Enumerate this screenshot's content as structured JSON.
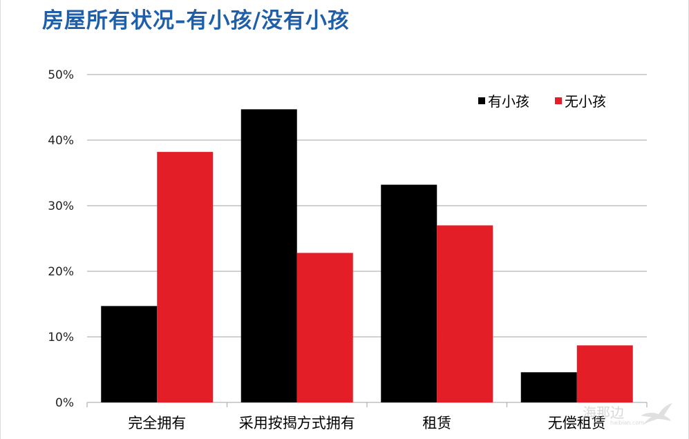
{
  "page": {
    "title": "房屋所有状况–有小孩/没有小孩",
    "watermark": {
      "text": "海那边",
      "sub": "haibian.com"
    }
  },
  "colors": {
    "title": "#1f5ea8",
    "series_with": "#000000",
    "series_without": "#e41e26",
    "grid": "#b3b3b3"
  },
  "chart_data": {
    "type": "bar",
    "title": "房屋所有状况–有小孩/没有小孩",
    "xlabel": "",
    "ylabel": "",
    "categories": [
      "完全拥有",
      "采用按揭方式拥有",
      "租赁",
      "无偿租赁"
    ],
    "series": [
      {
        "name": "有小孩",
        "color": "#000000",
        "values": [
          14.7,
          44.7,
          33.2,
          4.6
        ]
      },
      {
        "name": "无小孩",
        "color": "#e41e26",
        "values": [
          38.2,
          22.8,
          27.0,
          8.7
        ]
      }
    ],
    "ylim": [
      0,
      50
    ],
    "yticks": [
      0,
      10,
      20,
      30,
      40,
      50
    ],
    "ytick_labels": [
      "0%",
      "10%",
      "20%",
      "30%",
      "40%",
      "50%"
    ],
    "grid": true,
    "legend": "top-right"
  }
}
